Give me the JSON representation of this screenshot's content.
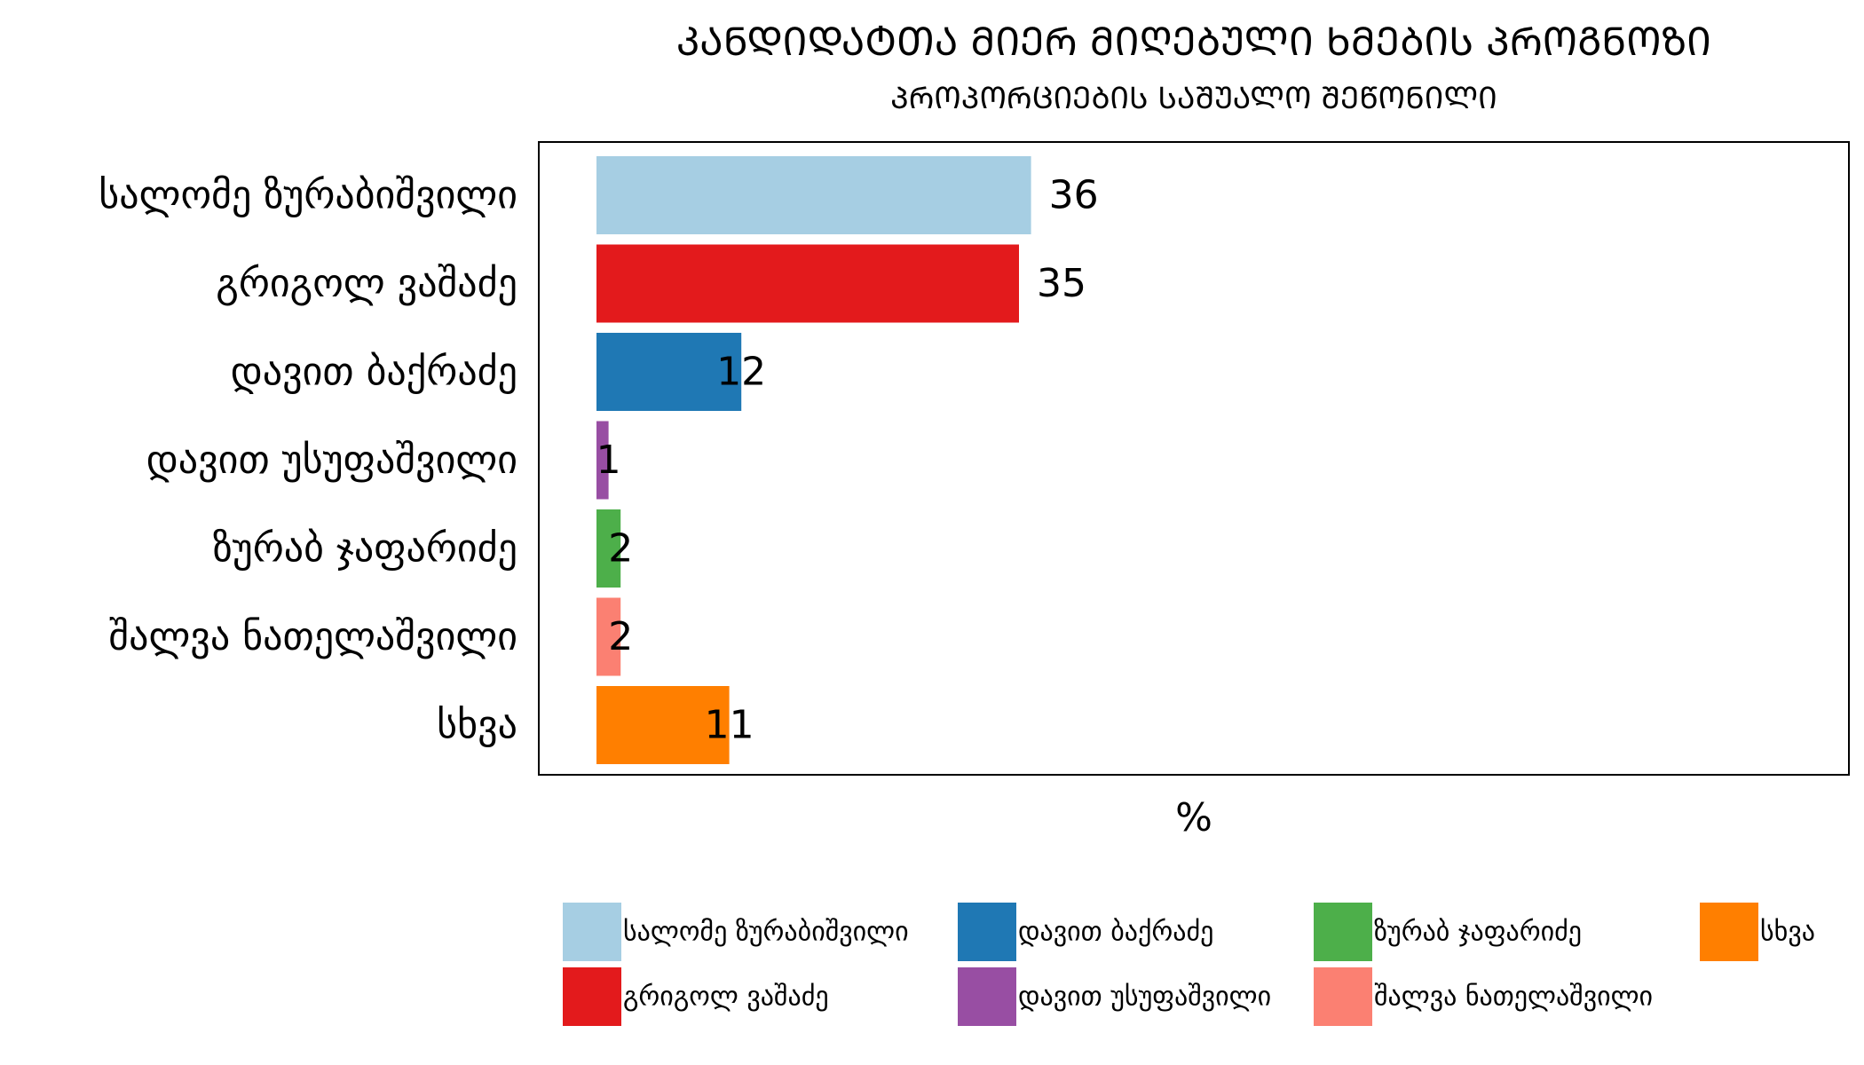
{
  "chart_data": {
    "type": "bar",
    "orientation": "horizontal",
    "title": "ᲙᲐᲜᲓᲘᲓᲐᲢᲗᲐ ᲛᲘᲔᲠ ᲛᲘᲦᲔᲑᲣᲚᲘ ᲮᲛᲔᲑᲘᲡ ᲞᲠᲝᲒᲜᲝᲖᲘ",
    "subtitle": "ᲞᲠᲝᲞᲝᲠᲪᲘᲔᲑᲘᲡ ᲡᲐᲨᲣᲐᲚᲝ ᲨᲔᲬᲝᲜᲘᲚᲘ",
    "xlabel": "%",
    "xlim": [
      0,
      100
    ],
    "grid": false,
    "legend_position": "bottom",
    "bars": [
      {
        "category": "სალომე ზურაბიშვილი",
        "value": 36,
        "label": "36",
        "color": "#a6cee3"
      },
      {
        "category": "გრიგოლ ვაშაძე",
        "value": 35,
        "label": "35",
        "color": "#e31a1c"
      },
      {
        "category": "დავით ბაქრაძე",
        "value": 12,
        "label": "12",
        "color": "#1f78b4"
      },
      {
        "category": "დავით უსუფაშვილი",
        "value": 1,
        "label": "1",
        "color": "#984ea3"
      },
      {
        "category": "ზურაბ ჯაფარიძე",
        "value": 2,
        "label": "2",
        "color": "#4daf4a"
      },
      {
        "category": "შალვა ნათელაშვილი",
        "value": 2,
        "label": "2",
        "color": "#fb8072"
      },
      {
        "category": "სხვა",
        "value": 11,
        "label": "11",
        "color": "#ff7f00"
      }
    ],
    "legend": [
      {
        "name": "სალომე ზურაბიშვილი",
        "color": "#a6cee3"
      },
      {
        "name": "დავით ბაქრაძე",
        "color": "#1f78b4"
      },
      {
        "name": "ზურაბ ჯაფარიძე",
        "color": "#4daf4a"
      },
      {
        "name": "სხვა",
        "color": "#ff7f00"
      },
      {
        "name": "გრიგოლ ვაშაძე",
        "color": "#e31a1c"
      },
      {
        "name": "დავით უსუფაშვილი",
        "color": "#984ea3"
      },
      {
        "name": "შალვა ნათელაშვილი",
        "color": "#fb8072"
      }
    ]
  }
}
